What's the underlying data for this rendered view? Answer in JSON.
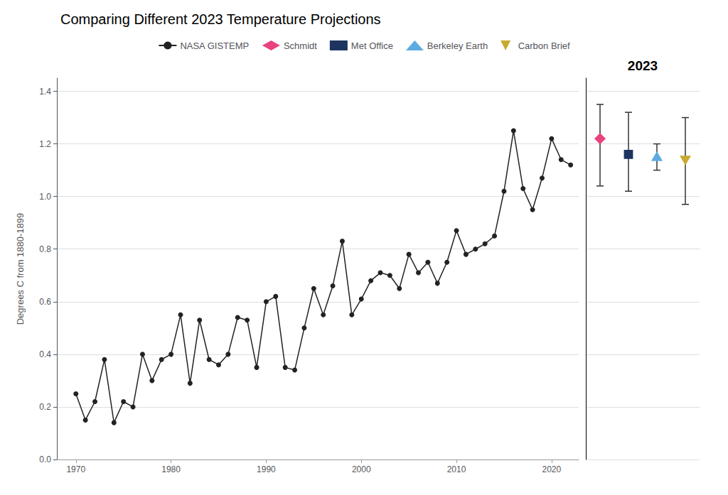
{
  "chart_data": [
    {
      "type": "line",
      "title": "Comparing Different 2023 Temperature Projections",
      "ylabel": "Degrees C from 1880-1899",
      "x": [
        1970,
        1971,
        1972,
        1973,
        1974,
        1975,
        1976,
        1977,
        1978,
        1979,
        1980,
        1981,
        1982,
        1983,
        1984,
        1985,
        1986,
        1987,
        1988,
        1989,
        1990,
        1991,
        1992,
        1993,
        1994,
        1995,
        1996,
        1997,
        1998,
        1999,
        2000,
        2001,
        2002,
        2003,
        2004,
        2005,
        2006,
        2007,
        2008,
        2009,
        2010,
        2011,
        2012,
        2013,
        2014,
        2015,
        2016,
        2017,
        2018,
        2019,
        2020,
        2021,
        2022
      ],
      "series": [
        {
          "name": "NASA GISTEMP",
          "color": "#222222",
          "marker": "circle",
          "values": [
            0.25,
            0.15,
            0.22,
            0.38,
            0.14,
            0.22,
            0.2,
            0.4,
            0.3,
            0.38,
            0.4,
            0.55,
            0.29,
            0.53,
            0.38,
            0.36,
            0.4,
            0.54,
            0.53,
            0.35,
            0.6,
            0.62,
            0.35,
            0.34,
            0.5,
            0.65,
            0.55,
            0.66,
            0.83,
            0.55,
            0.61,
            0.68,
            0.71,
            0.7,
            0.65,
            0.78,
            0.71,
            0.75,
            0.67,
            0.75,
            0.87,
            0.78,
            0.8,
            0.82,
            0.85,
            1.02,
            1.25,
            1.03,
            0.95,
            1.07,
            1.22,
            1.14,
            1.12
          ]
        }
      ],
      "xlim": [
        1968.0,
        2022.85
      ],
      "xticks": [
        1970,
        1980,
        1990,
        2000,
        2010,
        2020
      ],
      "ylim": [
        0.0,
        1.45
      ],
      "yticks": [
        {
          "value": 0.0,
          "label": "0.0"
        },
        0.2,
        0.4,
        0.6,
        0.8,
        {
          "value": 1.0,
          "label": "1.0"
        },
        1.2,
        1.4
      ],
      "grid": true,
      "legend": "top"
    },
    {
      "type": "scatter",
      "categories": [
        "2023"
      ],
      "series": [
        {
          "name": "Schmidt",
          "color": "#e8437e",
          "marker": "diamond",
          "values": [
            1.22
          ],
          "low": [
            1.04
          ],
          "high": [
            1.35
          ]
        },
        {
          "name": "Met Office",
          "color": "#1d3461",
          "marker": "square",
          "values": [
            1.16
          ],
          "low": [
            1.02
          ],
          "high": [
            1.32
          ]
        },
        {
          "name": "Berkeley Earth",
          "color": "#5aabe0",
          "marker": "triangle",
          "values": [
            1.15
          ],
          "low": [
            1.1
          ],
          "high": [
            1.2
          ]
        },
        {
          "name": "Carbon Brief",
          "color": "#c9aa2e",
          "marker": "triangle_down",
          "values": [
            1.14
          ],
          "low": [
            0.97
          ],
          "high": [
            1.3
          ]
        }
      ],
      "ylim": [
        0.0,
        1.45
      ],
      "yticks": [
        {
          "value": 0.0,
          "label": "0.0"
        },
        0.2,
        0.4,
        0.6,
        0.8,
        {
          "value": 1.0,
          "label": "1.0"
        },
        1.2,
        1.4
      ],
      "grid": true,
      "tick_labels": "x"
    }
  ]
}
